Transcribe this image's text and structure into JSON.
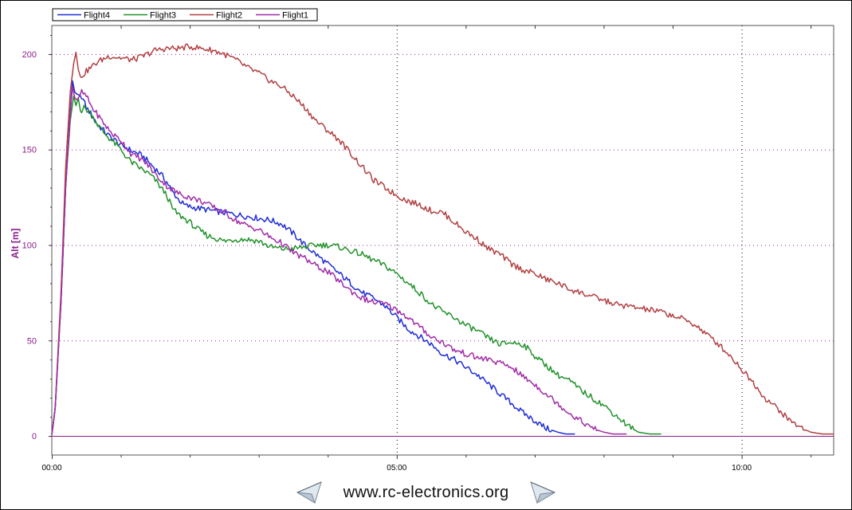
{
  "chart_data": {
    "type": "line",
    "title": "",
    "xlabel": "",
    "ylabel": "Alt [m]",
    "xlim_seconds": [
      0,
      680
    ],
    "ylim": [
      -10,
      215
    ],
    "x_ticks": [
      {
        "t": 0,
        "label": "00:00"
      },
      {
        "t": 300,
        "label": "05:00"
      },
      {
        "t": 600,
        "label": "10:00"
      }
    ],
    "y_ticks": [
      0,
      50,
      100,
      150,
      200
    ],
    "grid": true,
    "legend_position": "top-left",
    "x_unit": "mm:ss",
    "series": [
      {
        "name": "Flight4",
        "color": "#1f2dd6",
        "points": [
          [
            0,
            0
          ],
          [
            3,
            15
          ],
          [
            8,
            70
          ],
          [
            12,
            130
          ],
          [
            16,
            170
          ],
          [
            18,
            186
          ],
          [
            20,
            180
          ],
          [
            22,
            179
          ],
          [
            26,
            178
          ],
          [
            30,
            172
          ],
          [
            35,
            168
          ],
          [
            40,
            163
          ],
          [
            45,
            160
          ],
          [
            50,
            157
          ],
          [
            55,
            155
          ],
          [
            60,
            152
          ],
          [
            65,
            151
          ],
          [
            70,
            149
          ],
          [
            75,
            148
          ],
          [
            80,
            146
          ],
          [
            85,
            143
          ],
          [
            90,
            140
          ],
          [
            95,
            137
          ],
          [
            100,
            133
          ],
          [
            105,
            128
          ],
          [
            110,
            124
          ],
          [
            115,
            121
          ],
          [
            120,
            120
          ],
          [
            130,
            119
          ],
          [
            140,
            118
          ],
          [
            150,
            117
          ],
          [
            160,
            116
          ],
          [
            170,
            115
          ],
          [
            180,
            114
          ],
          [
            190,
            113
          ],
          [
            200,
            111
          ],
          [
            210,
            106
          ],
          [
            220,
            100
          ],
          [
            230,
            95
          ],
          [
            240,
            90
          ],
          [
            250,
            85
          ],
          [
            260,
            80
          ],
          [
            270,
            75
          ],
          [
            280,
            72
          ],
          [
            290,
            68
          ],
          [
            300,
            62
          ],
          [
            310,
            56
          ],
          [
            320,
            52
          ],
          [
            330,
            48
          ],
          [
            340,
            43
          ],
          [
            350,
            40
          ],
          [
            360,
            36
          ],
          [
            370,
            32
          ],
          [
            380,
            27
          ],
          [
            390,
            22
          ],
          [
            400,
            17
          ],
          [
            410,
            12
          ],
          [
            420,
            8
          ],
          [
            430,
            4
          ],
          [
            440,
            2
          ],
          [
            447,
            1
          ],
          [
            455,
            1
          ]
        ]
      },
      {
        "name": "Flight3",
        "color": "#21922a",
        "points": [
          [
            0,
            0
          ],
          [
            3,
            15
          ],
          [
            8,
            70
          ],
          [
            12,
            130
          ],
          [
            16,
            165
          ],
          [
            19,
            178
          ],
          [
            21,
            173
          ],
          [
            23,
            177
          ],
          [
            25,
            170
          ],
          [
            28,
            172
          ],
          [
            32,
            170
          ],
          [
            36,
            167
          ],
          [
            40,
            163
          ],
          [
            45,
            159
          ],
          [
            50,
            156
          ],
          [
            55,
            153
          ],
          [
            60,
            150
          ],
          [
            65,
            146
          ],
          [
            70,
            143
          ],
          [
            75,
            141
          ],
          [
            80,
            139
          ],
          [
            85,
            137
          ],
          [
            90,
            134
          ],
          [
            95,
            130
          ],
          [
            100,
            126
          ],
          [
            105,
            119
          ],
          [
            110,
            116
          ],
          [
            115,
            114
          ],
          [
            120,
            112
          ],
          [
            125,
            109
          ],
          [
            130,
            107
          ],
          [
            135,
            105
          ],
          [
            140,
            104
          ],
          [
            145,
            103
          ],
          [
            150,
            102
          ],
          [
            160,
            103
          ],
          [
            170,
            103
          ],
          [
            180,
            102
          ],
          [
            190,
            99
          ],
          [
            200,
            98
          ],
          [
            210,
            98
          ],
          [
            220,
            99
          ],
          [
            230,
            100
          ],
          [
            240,
            100
          ],
          [
            250,
            99
          ],
          [
            260,
            97
          ],
          [
            270,
            95
          ],
          [
            280,
            92
          ],
          [
            290,
            89
          ],
          [
            300,
            85
          ],
          [
            310,
            80
          ],
          [
            320,
            75
          ],
          [
            330,
            69
          ],
          [
            340,
            65
          ],
          [
            350,
            62
          ],
          [
            360,
            58
          ],
          [
            370,
            55
          ],
          [
            380,
            51
          ],
          [
            390,
            48
          ],
          [
            400,
            49
          ],
          [
            410,
            48
          ],
          [
            420,
            42
          ],
          [
            430,
            37
          ],
          [
            440,
            32
          ],
          [
            450,
            29
          ],
          [
            460,
            24
          ],
          [
            470,
            20
          ],
          [
            480,
            16
          ],
          [
            490,
            11
          ],
          [
            500,
            6
          ],
          [
            510,
            2
          ],
          [
            520,
            1
          ],
          [
            530,
            1
          ]
        ]
      },
      {
        "name": "Flight2",
        "color": "#b24042",
        "points": [
          [
            0,
            0
          ],
          [
            3,
            15
          ],
          [
            8,
            75
          ],
          [
            12,
            140
          ],
          [
            16,
            180
          ],
          [
            19,
            195
          ],
          [
            21,
            201
          ],
          [
            23,
            192
          ],
          [
            25,
            188
          ],
          [
            30,
            191
          ],
          [
            40,
            196
          ],
          [
            50,
            199
          ],
          [
            60,
            198
          ],
          [
            70,
            197
          ],
          [
            80,
            199
          ],
          [
            90,
            202
          ],
          [
            100,
            203
          ],
          [
            110,
            203
          ],
          [
            120,
            204
          ],
          [
            130,
            203
          ],
          [
            140,
            202
          ],
          [
            150,
            200
          ],
          [
            160,
            197
          ],
          [
            170,
            193
          ],
          [
            180,
            190
          ],
          [
            190,
            186
          ],
          [
            200,
            183
          ],
          [
            210,
            178
          ],
          [
            220,
            172
          ],
          [
            230,
            165
          ],
          [
            240,
            160
          ],
          [
            250,
            155
          ],
          [
            260,
            148
          ],
          [
            270,
            141
          ],
          [
            280,
            134
          ],
          [
            290,
            130
          ],
          [
            300,
            126
          ],
          [
            310,
            123
          ],
          [
            320,
            121
          ],
          [
            330,
            118
          ],
          [
            340,
            117
          ],
          [
            350,
            112
          ],
          [
            360,
            107
          ],
          [
            370,
            103
          ],
          [
            380,
            98
          ],
          [
            390,
            95
          ],
          [
            400,
            90
          ],
          [
            410,
            87
          ],
          [
            420,
            85
          ],
          [
            430,
            82
          ],
          [
            440,
            80
          ],
          [
            450,
            77
          ],
          [
            460,
            75
          ],
          [
            470,
            73
          ],
          [
            480,
            71
          ],
          [
            490,
            69
          ],
          [
            500,
            68
          ],
          [
            510,
            67
          ],
          [
            520,
            66
          ],
          [
            530,
            65
          ],
          [
            540,
            63
          ],
          [
            550,
            61
          ],
          [
            560,
            58
          ],
          [
            570,
            53
          ],
          [
            580,
            48
          ],
          [
            590,
            42
          ],
          [
            600,
            35
          ],
          [
            610,
            28
          ],
          [
            620,
            20
          ],
          [
            630,
            15
          ],
          [
            640,
            9
          ],
          [
            650,
            5
          ],
          [
            660,
            2
          ],
          [
            670,
            1
          ],
          [
            680,
            1
          ]
        ]
      },
      {
        "name": "Flight1",
        "color": "#a12ba8",
        "points": [
          [
            0,
            0
          ],
          [
            3,
            15
          ],
          [
            8,
            70
          ],
          [
            12,
            130
          ],
          [
            16,
            168
          ],
          [
            18,
            183
          ],
          [
            20,
            177
          ],
          [
            22,
            176
          ],
          [
            26,
            180
          ],
          [
            30,
            178
          ],
          [
            35,
            172
          ],
          [
            40,
            168
          ],
          [
            45,
            164
          ],
          [
            50,
            160
          ],
          [
            55,
            157
          ],
          [
            60,
            155
          ],
          [
            65,
            151
          ],
          [
            70,
            147
          ],
          [
            75,
            146
          ],
          [
            80,
            144
          ],
          [
            85,
            141
          ],
          [
            90,
            137
          ],
          [
            95,
            134
          ],
          [
            100,
            131
          ],
          [
            105,
            129
          ],
          [
            110,
            127
          ],
          [
            115,
            126
          ],
          [
            120,
            125
          ],
          [
            130,
            123
          ],
          [
            140,
            120
          ],
          [
            150,
            117
          ],
          [
            160,
            113
          ],
          [
            170,
            110
          ],
          [
            180,
            108
          ],
          [
            190,
            104
          ],
          [
            200,
            101
          ],
          [
            210,
            96
          ],
          [
            220,
            93
          ],
          [
            230,
            89
          ],
          [
            240,
            86
          ],
          [
            250,
            81
          ],
          [
            260,
            76
          ],
          [
            270,
            72
          ],
          [
            280,
            70
          ],
          [
            290,
            69
          ],
          [
            300,
            66
          ],
          [
            310,
            62
          ],
          [
            320,
            57
          ],
          [
            330,
            52
          ],
          [
            340,
            49
          ],
          [
            350,
            45
          ],
          [
            360,
            43
          ],
          [
            370,
            41
          ],
          [
            380,
            40
          ],
          [
            390,
            38
          ],
          [
            400,
            36
          ],
          [
            410,
            31
          ],
          [
            420,
            27
          ],
          [
            430,
            22
          ],
          [
            440,
            17
          ],
          [
            450,
            12
          ],
          [
            460,
            8
          ],
          [
            470,
            4
          ],
          [
            480,
            2
          ],
          [
            488,
            1
          ],
          [
            500,
            1
          ]
        ]
      }
    ]
  },
  "footer": {
    "url": "www.rc-electronics.org"
  },
  "icons": [
    "paper-plane-icon"
  ]
}
